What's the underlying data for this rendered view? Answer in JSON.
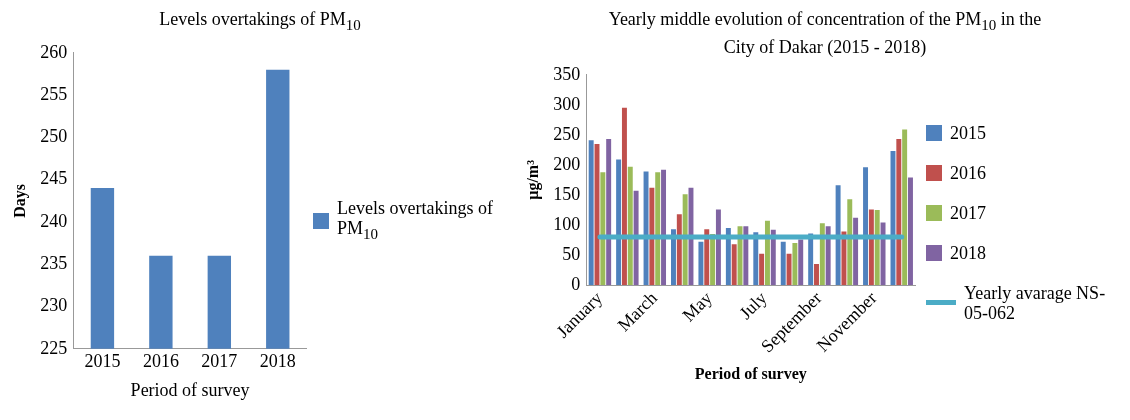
{
  "chart_data": [
    {
      "type": "bar",
      "title": "Levels overtakings of PM$_{10}$",
      "xlabel": "Period of survey",
      "ylabel": "Days",
      "categories": [
        "2015",
        "2016",
        "2017",
        "2018"
      ],
      "series": [
        {
          "name": "Levels overtakings of PM$_{10}$",
          "color": "#4f81bd",
          "values": [
            244,
            236,
            236,
            258
          ]
        }
      ],
      "ylim": [
        225,
        260
      ],
      "yticks": [
        225,
        230,
        235,
        240,
        245,
        250,
        255,
        260
      ],
      "grid": false,
      "legend": "right"
    },
    {
      "type": "bar",
      "title": "Yearly middle evolution of concentration of the PM$_{10}$ in the City of Dakar (2015 - 2018)",
      "xlabel": "Period of survey",
      "ylabel": "µg/m³",
      "categories": [
        "January",
        null,
        "March",
        null,
        "May",
        null,
        "July",
        null,
        "September",
        null,
        "November",
        null
      ],
      "series": [
        {
          "name": "2015",
          "color": "#4f81bd",
          "values": [
            241,
            209,
            189,
            93,
            72,
            95,
            88,
            72,
            86,
            166,
            196,
            223
          ]
        },
        {
          "name": "2016",
          "color": "#c0504d",
          "values": [
            235,
            295,
            162,
            118,
            93,
            68,
            52,
            52,
            35,
            89,
            126,
            243
          ]
        },
        {
          "name": "2017",
          "color": "#9bbb59",
          "values": [
            188,
            197,
            188,
            151,
            85,
            98,
            107,
            70,
            103,
            143,
            125,
            259
          ]
        },
        {
          "name": "2018",
          "color": "#8064a2",
          "values": [
            243,
            157,
            192,
            162,
            126,
            98,
            92,
            76,
            98,
            112,
            104,
            179
          ]
        },
        {
          "name": "Yearly avarage NS-05-062",
          "type": "line",
          "color": "#4bacc6",
          "marker": "none",
          "values": [
            80,
            80,
            80,
            80,
            80,
            80,
            80,
            80,
            80,
            80,
            80,
            80
          ]
        }
      ],
      "ylim": [
        0,
        350
      ],
      "yticks": [
        0,
        50,
        100,
        150,
        200,
        250,
        300,
        350
      ],
      "grid": false,
      "legend": "right"
    }
  ]
}
